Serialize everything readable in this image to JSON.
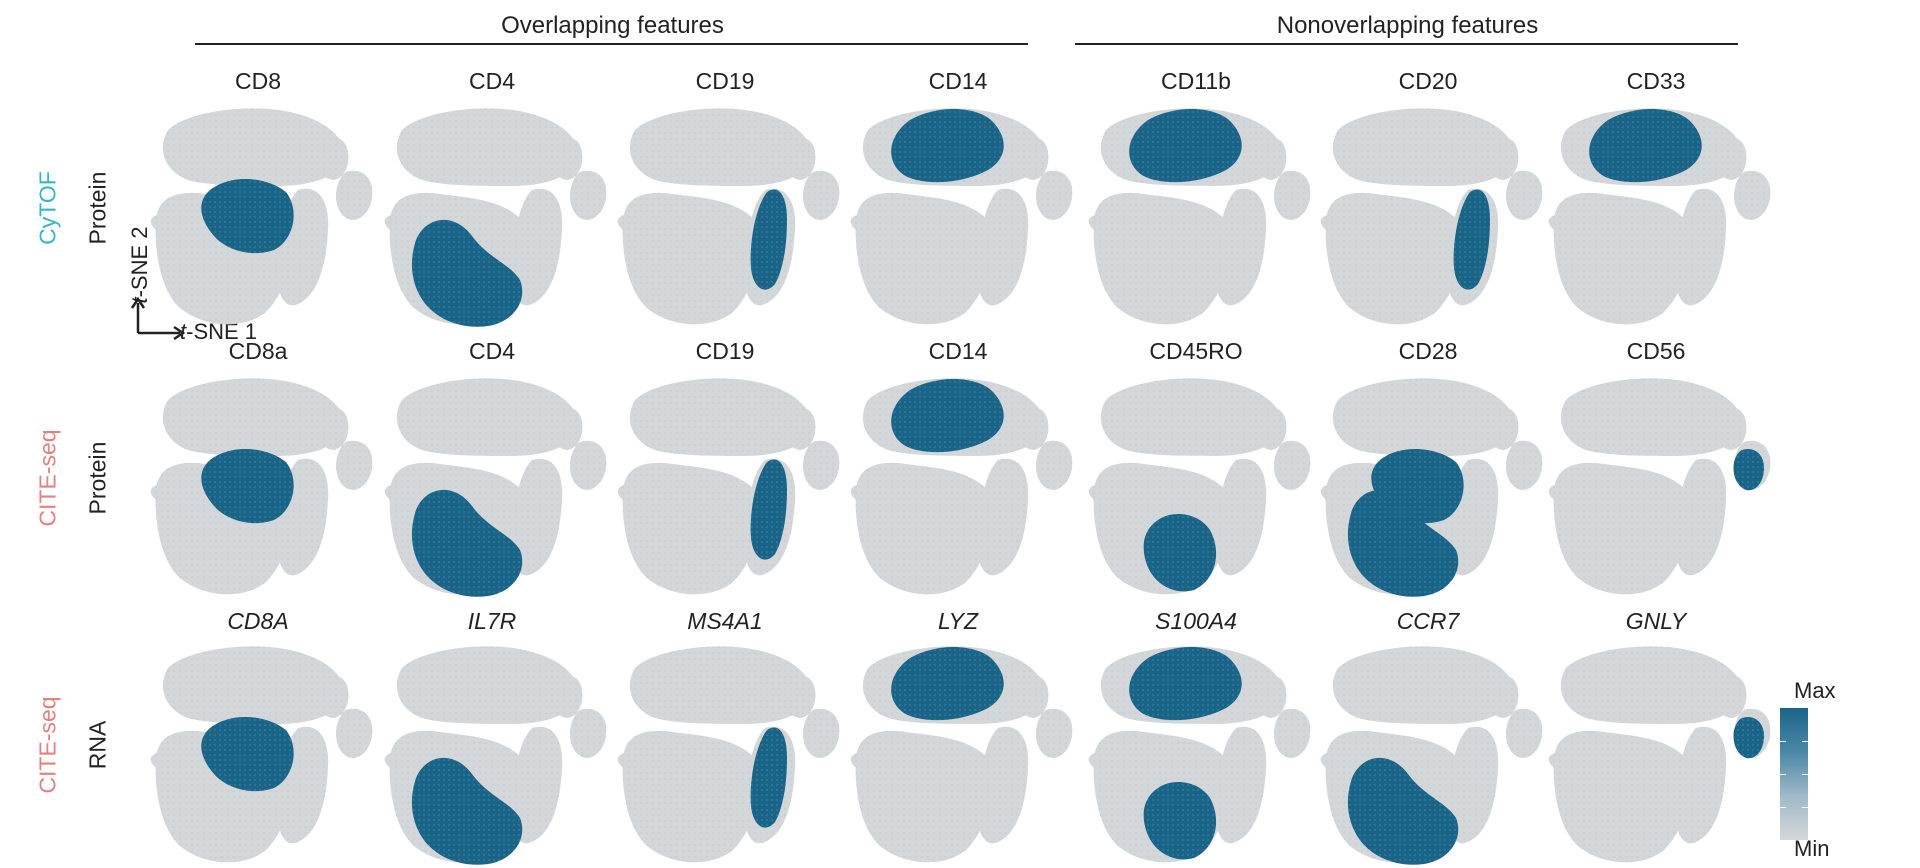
{
  "groups": [
    {
      "label": "Overlapping features"
    },
    {
      "label": "Nonoverlapping features"
    }
  ],
  "axes": {
    "y_prefix": "t",
    "y_suffix": "-SNE 2",
    "x_prefix": "t",
    "x_suffix": "-SNE 1"
  },
  "legend": {
    "max": "Max",
    "min": "Min",
    "colors": [
      "#1a6488",
      "#d4d7da"
    ]
  },
  "colors": {
    "base": "#d4d7da",
    "high": "#1a6488",
    "mid": "#9fb9c8",
    "cytof": "#35b8c4",
    "citeseq": "#e2827f"
  },
  "rows": [
    {
      "technology": "CyTOF",
      "tech_color": "#35b8c4",
      "modality": "Protein",
      "italic": false,
      "panels": [
        {
          "feature": "CD8",
          "highlight": [
            "cd8"
          ]
        },
        {
          "feature": "CD4",
          "highlight": [
            "cd4"
          ]
        },
        {
          "feature": "CD19",
          "highlight": [
            "bcell"
          ]
        },
        {
          "feature": "CD14",
          "highlight": [
            "mono"
          ]
        },
        {
          "feature": "CD11b",
          "highlight": [
            "mono"
          ]
        },
        {
          "feature": "CD20",
          "highlight": [
            "bcell"
          ]
        },
        {
          "feature": "CD33",
          "highlight": [
            "mono"
          ]
        }
      ]
    },
    {
      "technology": "CITE-seq",
      "tech_color": "#e2827f",
      "modality": "Protein",
      "italic": false,
      "panels": [
        {
          "feature": "CD8a",
          "highlight": [
            "cd8"
          ]
        },
        {
          "feature": "CD4",
          "highlight": [
            "cd4"
          ]
        },
        {
          "feature": "CD19",
          "highlight": [
            "bcell"
          ]
        },
        {
          "feature": "CD14",
          "highlight": [
            "mono"
          ]
        },
        {
          "feature": "CD45RO",
          "highlight": [
            "memory"
          ]
        },
        {
          "feature": "CD28",
          "highlight": [
            "cd4",
            "cd8"
          ]
        },
        {
          "feature": "CD56",
          "highlight": [
            "nk"
          ]
        }
      ]
    },
    {
      "technology": "CITE-seq",
      "tech_color": "#e2827f",
      "modality": "RNA",
      "italic": true,
      "panels": [
        {
          "feature": "CD8A",
          "highlight": [
            "cd8"
          ]
        },
        {
          "feature": "IL7R",
          "highlight": [
            "cd4"
          ]
        },
        {
          "feature": "MS4A1",
          "highlight": [
            "bcell"
          ]
        },
        {
          "feature": "LYZ",
          "highlight": [
            "mono"
          ]
        },
        {
          "feature": "S100A4",
          "highlight": [
            "mono",
            "memory"
          ]
        },
        {
          "feature": "CCR7",
          "highlight": [
            "cd4"
          ]
        },
        {
          "feature": "GNLY",
          "highlight": [
            "nk"
          ]
        }
      ]
    }
  ]
}
